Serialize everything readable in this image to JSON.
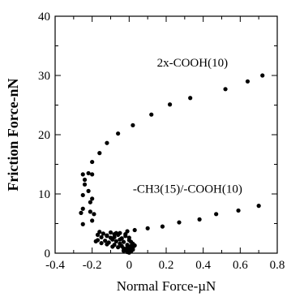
{
  "chart_data": {
    "type": "scatter",
    "xlabel": "Normal Force-µN",
    "ylabel": "Friction  Force-nN",
    "xlim": [
      -0.4,
      0.8
    ],
    "ylim": [
      0,
      40
    ],
    "xticks": [
      -0.4,
      -0.2,
      0,
      0.2,
      0.4,
      0.6,
      0.8
    ],
    "xtick_labels": [
      "-0.4",
      "-0.2",
      "0",
      "0.2",
      "0.4",
      "0.6",
      "0.8"
    ],
    "yticks": [
      0,
      10,
      20,
      30,
      40
    ],
    "ytick_labels": [
      "0",
      "10",
      "20",
      "30",
      "40"
    ],
    "grid": false,
    "marker_color": "#000000",
    "annotations": [
      {
        "text": "2x-COOH(10)",
        "x": 0.15,
        "y": 31.5
      },
      {
        "text": "-CH3(15)/-COOH(10)",
        "x": 0.02,
        "y": 10.2
      }
    ],
    "series": [
      {
        "name": "2x-COOH(10)",
        "points": [
          [
            0.72,
            30.0
          ],
          [
            0.64,
            29.0
          ],
          [
            0.52,
            27.7
          ],
          [
            0.33,
            26.2
          ],
          [
            0.22,
            25.1
          ],
          [
            0.12,
            23.4
          ],
          [
            0.02,
            21.6
          ],
          [
            -0.06,
            20.2
          ],
          [
            -0.12,
            18.6
          ],
          [
            -0.16,
            16.9
          ],
          [
            -0.2,
            15.4
          ],
          [
            -0.22,
            13.5
          ],
          [
            -0.24,
            11.6
          ],
          [
            -0.25,
            9.8
          ],
          [
            -0.25,
            7.5
          ],
          [
            -0.24,
            12.4
          ],
          [
            -0.25,
            13.3
          ],
          [
            -0.2,
            13.3
          ]
        ]
      },
      {
        "name": "-CH3(15)/-COOH(10)",
        "points": [
          [
            0.7,
            8.0
          ],
          [
            0.59,
            7.2
          ],
          [
            0.47,
            6.6
          ],
          [
            0.38,
            5.7
          ],
          [
            0.27,
            5.2
          ],
          [
            0.18,
            4.5
          ],
          [
            0.1,
            4.2
          ],
          [
            0.03,
            3.9
          ],
          [
            -0.01,
            3.7
          ],
          [
            -0.05,
            3.4
          ],
          [
            -0.08,
            3.2
          ],
          [
            -0.12,
            3.0
          ],
          [
            -0.15,
            2.7
          ],
          [
            -0.17,
            2.2
          ],
          [
            -0.18,
            2.0
          ],
          [
            -0.2,
            5.5
          ],
          [
            -0.21,
            7.0
          ],
          [
            -0.21,
            8.6
          ],
          [
            -0.22,
            10.5
          ],
          [
            -0.25,
            4.9
          ],
          [
            -0.26,
            6.8
          ],
          [
            -0.19,
            6.6
          ],
          [
            -0.2,
            9.2
          ]
        ]
      },
      {
        "name": "",
        "points": [
          [
            -0.16,
            3.6
          ],
          [
            -0.14,
            3.3
          ],
          [
            -0.12,
            2.9
          ],
          [
            -0.1,
            3.5
          ],
          [
            -0.08,
            2.7
          ],
          [
            -0.06,
            3.1
          ],
          [
            -0.04,
            2.5
          ],
          [
            -0.02,
            2.9
          ],
          [
            0.0,
            2.2
          ],
          [
            -0.03,
            1.9
          ],
          [
            -0.05,
            1.6
          ],
          [
            -0.07,
            2.0
          ],
          [
            -0.09,
            2.3
          ],
          [
            -0.11,
            1.8
          ],
          [
            -0.13,
            2.1
          ],
          [
            -0.15,
            1.7
          ],
          [
            -0.01,
            1.4
          ],
          [
            0.01,
            1.2
          ],
          [
            0.02,
            0.9
          ],
          [
            0.0,
            0.7
          ],
          [
            -0.02,
            0.5
          ],
          [
            0.01,
            0.3
          ],
          [
            -0.01,
            0.2
          ],
          [
            0.02,
            1.6
          ],
          [
            -0.04,
            1.2
          ],
          [
            -0.06,
            1.0
          ],
          [
            -0.03,
            0.8
          ],
          [
            0.01,
            1.9
          ],
          [
            0.03,
            1.3
          ],
          [
            -0.08,
            1.4
          ],
          [
            -0.1,
            2.6
          ],
          [
            -0.12,
            1.5
          ],
          [
            -0.02,
            3.2
          ],
          [
            -0.07,
            3.4
          ],
          [
            0.0,
            2.6
          ],
          [
            0.02,
            0.6
          ],
          [
            -0.01,
            1.0
          ],
          [
            -0.05,
            2.3
          ],
          [
            -0.09,
            1.1
          ],
          [
            -0.17,
            3.1
          ],
          [
            -0.03,
            0.4
          ],
          [
            0.0,
            0.1
          ]
        ]
      }
    ]
  }
}
